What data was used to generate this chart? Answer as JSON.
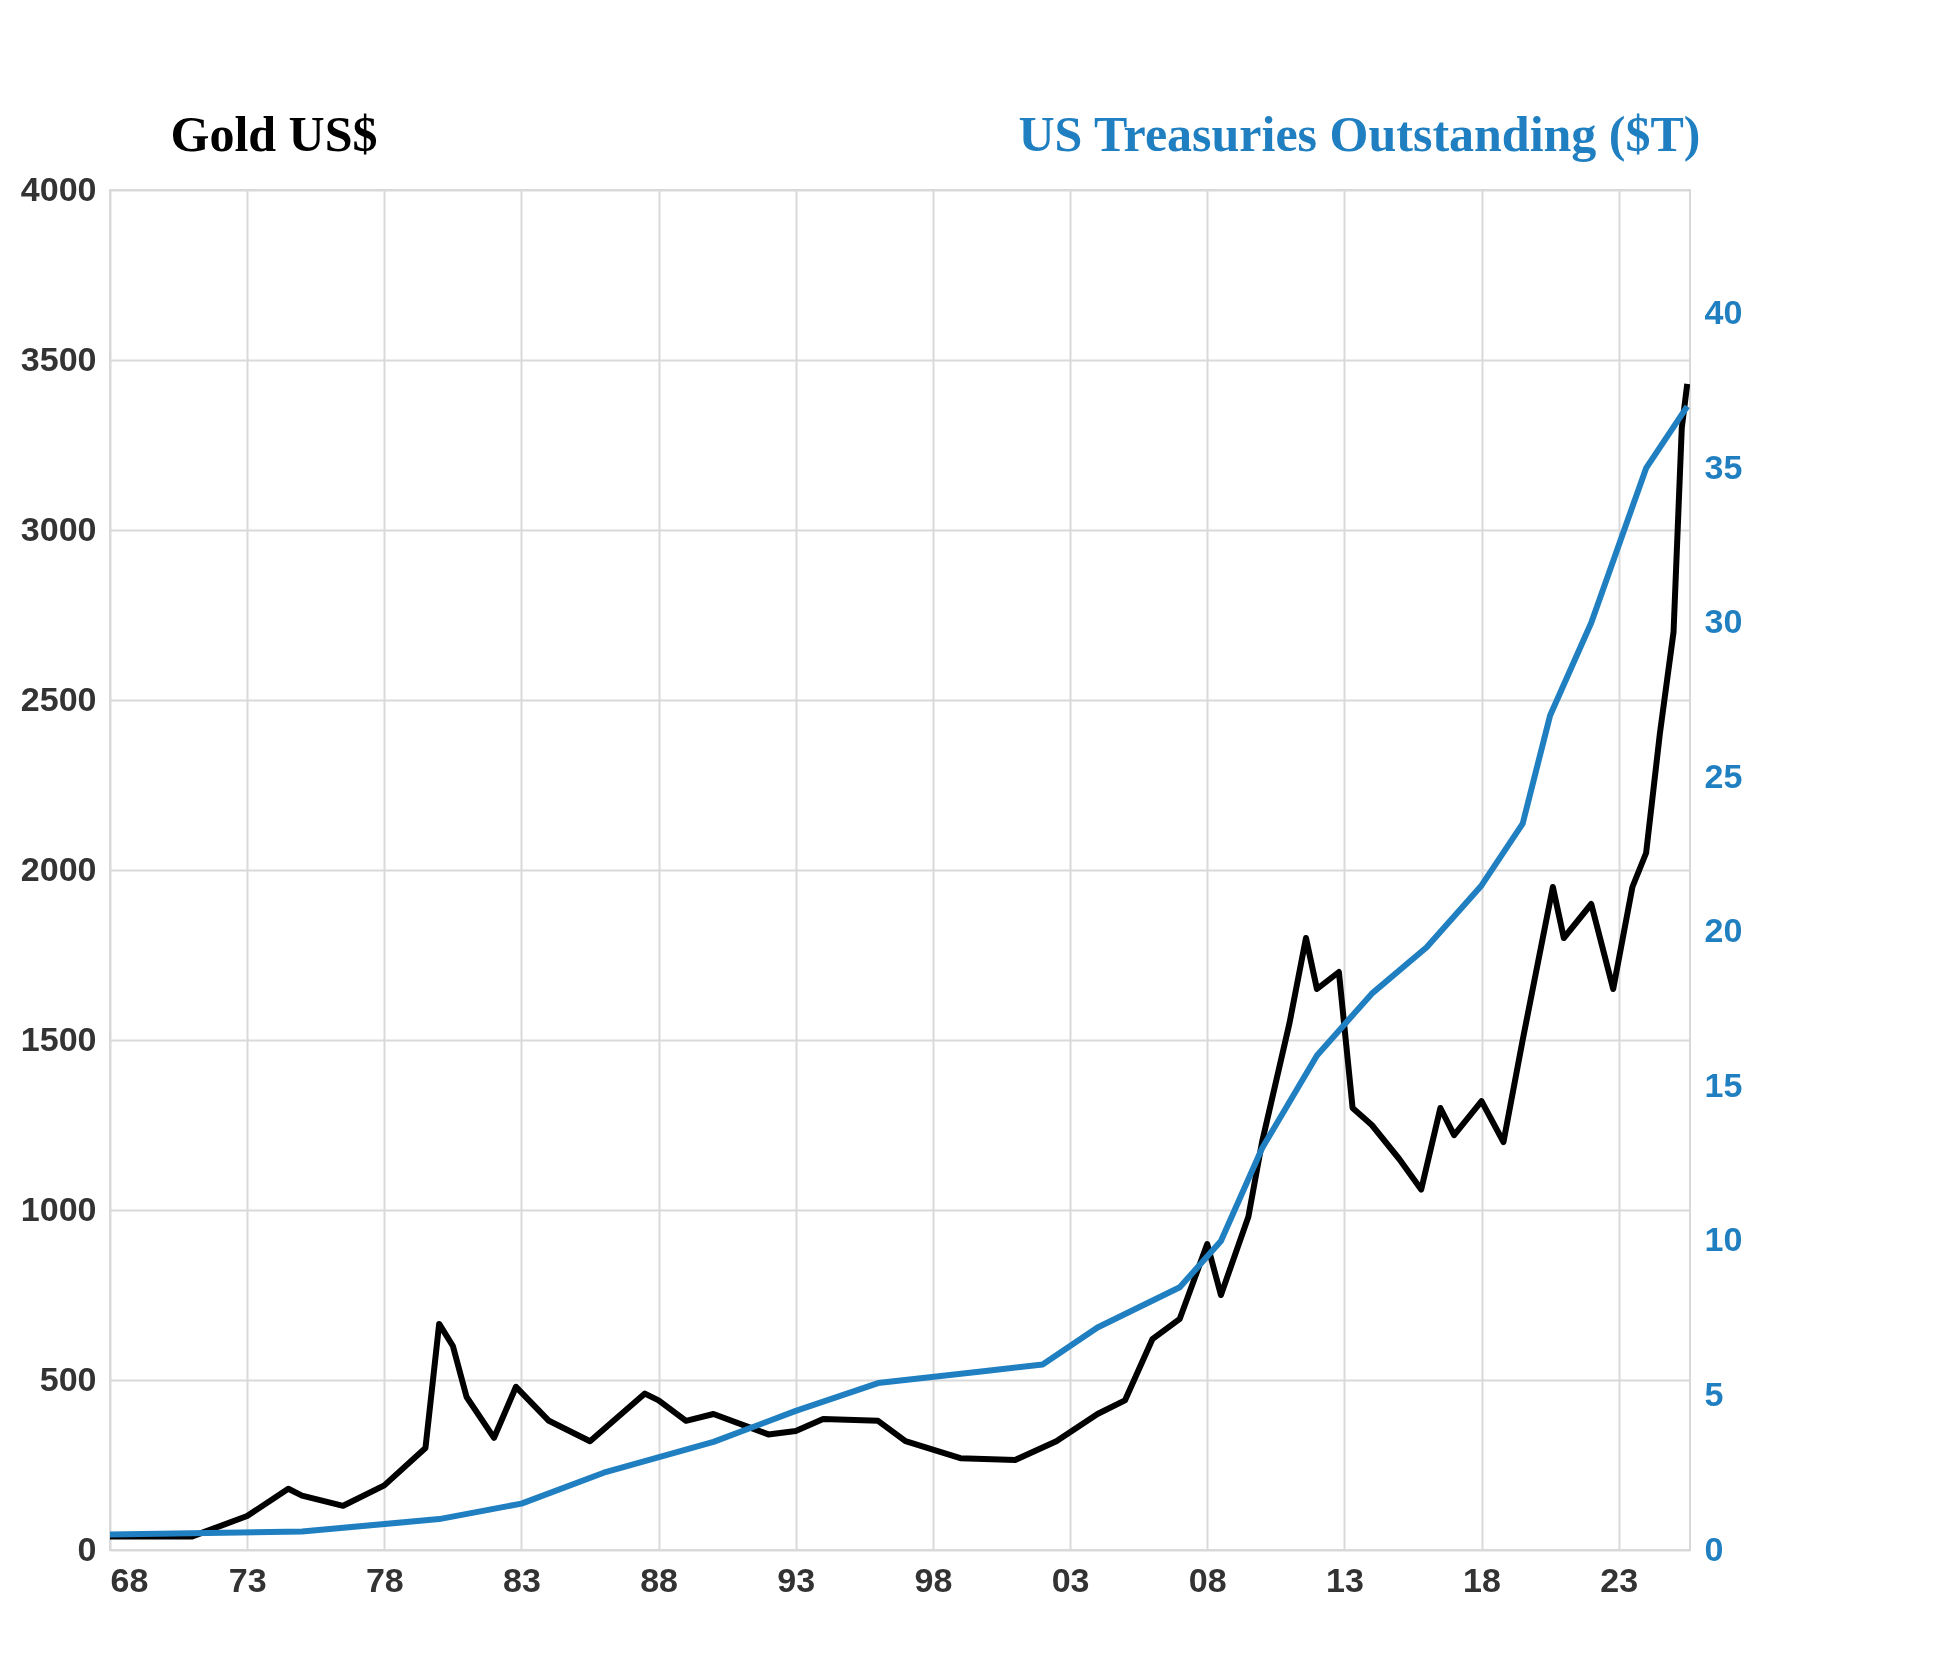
{
  "chart_data": {
    "type": "line",
    "ylabel": "Gold US$",
    "y2label": "US Treasuries Outstanding ($T)",
    "xlim": [
      1968,
      2025.6
    ],
    "xticks": [
      {
        "value": 1968,
        "label": "68"
      },
      {
        "value": 1973,
        "label": "73"
      },
      {
        "value": 1978,
        "label": "78"
      },
      {
        "value": 1983,
        "label": "83"
      },
      {
        "value": 1988,
        "label": "88"
      },
      {
        "value": 1993,
        "label": "93"
      },
      {
        "value": 1998,
        "label": "98"
      },
      {
        "value": 2003,
        "label": "03"
      },
      {
        "value": 2008,
        "label": "08"
      },
      {
        "value": 2013,
        "label": "13"
      },
      {
        "value": 2018,
        "label": "18"
      },
      {
        "value": 2023,
        "label": "23"
      }
    ],
    "ylim": [
      0,
      4000
    ],
    "yticks": [
      0,
      500,
      1000,
      1500,
      2000,
      2500,
      3000,
      3500,
      4000
    ],
    "y2lim": [
      0,
      44
    ],
    "y2ticks": [
      0,
      5,
      10,
      15,
      20,
      25,
      30,
      35,
      40
    ],
    "grid": true,
    "marker": "none",
    "line_style": "solid",
    "series": [
      {
        "color": "#000000",
        "x": [
          1968,
          1971,
          1973,
          1974.5,
          1975,
          1976.5,
          1978,
          1979.5,
          1980,
          1980.5,
          1981,
          1982,
          1982.8,
          1984,
          1985.5,
          1987.5,
          1988,
          1989,
          1990,
          1992,
          1993,
          1994,
          1996,
          1997,
          1999,
          2001,
          2002.5,
          2004,
          2005,
          2006,
          2007,
          2008,
          2008.5,
          2009.5,
          2010,
          2011,
          2011.6,
          2012,
          2012.8,
          2013.3,
          2014,
          2015,
          2015.8,
          2016.5,
          2017,
          2018,
          2018.8,
          2019.5,
          2020.6,
          2021,
          2022,
          2022.8,
          2023.5,
          2024,
          2024.5,
          2025,
          2025.3,
          2025.5
        ],
        "values": [
          40,
          40,
          100,
          180,
          160,
          130,
          190,
          300,
          665,
          600,
          450,
          330,
          480,
          380,
          320,
          460,
          440,
          380,
          400,
          340,
          350,
          385,
          380,
          320,
          270,
          265,
          320,
          400,
          440,
          620,
          680,
          900,
          750,
          980,
          1200,
          1550,
          1800,
          1650,
          1700,
          1300,
          1250,
          1150,
          1060,
          1300,
          1220,
          1320,
          1200,
          1500,
          1950,
          1800,
          1900,
          1650,
          1950,
          2050,
          2400,
          2700,
          3300,
          3430
        ]
      },
      {
        "color": "#1f7fc0",
        "axis": "y2",
        "x": [
          1968,
          1975,
          1980,
          1983,
          1986,
          1990,
          1993,
          1996,
          2000,
          2002,
          2004,
          2007,
          2008.5,
          2010,
          2012,
          2014,
          2016,
          2018,
          2019.5,
          2020.5,
          2022,
          2023,
          2024,
          2025.5
        ],
        "values": [
          0.5,
          0.6,
          1.0,
          1.5,
          2.5,
          3.5,
          4.5,
          5.4,
          5.8,
          6,
          7.2,
          8.5,
          10,
          13,
          16,
          18,
          19.5,
          21.5,
          23.5,
          27,
          30,
          32.5,
          35,
          37
        ]
      }
    ]
  }
}
